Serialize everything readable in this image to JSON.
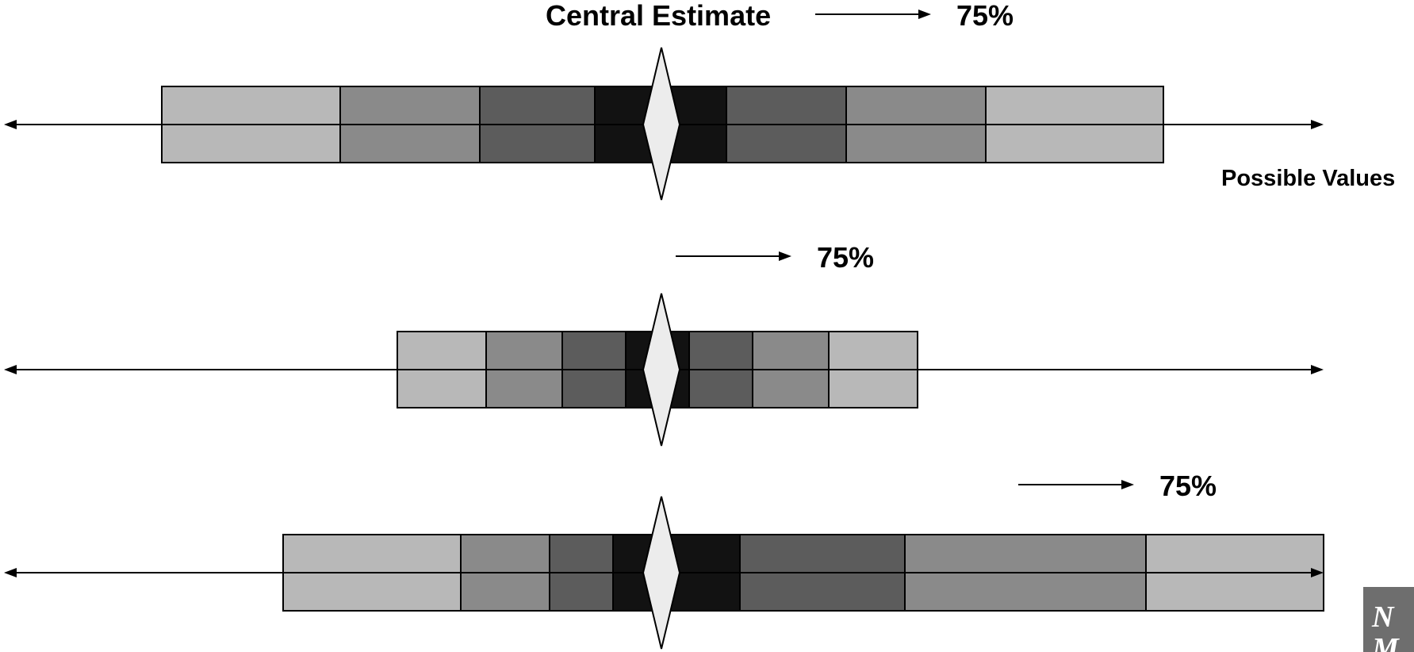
{
  "diagram": {
    "central_estimate_label": "Central Estimate",
    "possible_values_label": "Possible Values",
    "shade_colors": [
      "#b8b8b8",
      "#8a8a8a",
      "#5c5c5c",
      "#121212"
    ],
    "marker_color": "#ececec",
    "rows": [
      {
        "percent_label": "75%"
      },
      {
        "percent_label": "75%"
      },
      {
        "percent_label": "75%"
      }
    ],
    "logo": {
      "text": "NM",
      "icon": "nm-logo-icon",
      "background": "#6e6e6e"
    }
  }
}
